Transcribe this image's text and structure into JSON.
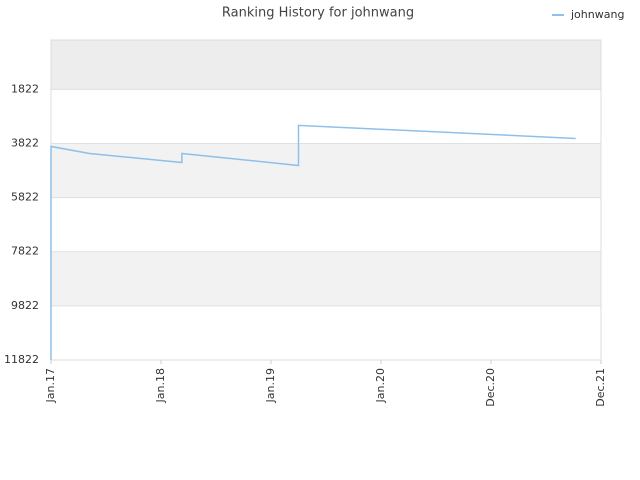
{
  "chart_data": {
    "type": "line",
    "title": "Ranking History for johnwang",
    "x": [
      2017.0,
      2017.0,
      2017.35,
      2018.19,
      2018.19,
      2019.25,
      2019.25,
      2021.77
    ],
    "series": [
      {
        "name": "johnwang",
        "color": "#8fc0ea",
        "values": [
          11822,
          3933,
          4192,
          4526,
          4192,
          4637,
          3155,
          3637
        ]
      }
    ],
    "xlim": [
      2017,
      2022
    ],
    "xticks": [
      {
        "value": 2017,
        "label": "Jan.17"
      },
      {
        "value": 2018,
        "label": "Jan.18"
      },
      {
        "value": 2019,
        "label": "Jan.19"
      },
      {
        "value": 2020,
        "label": "Jan.20"
      },
      {
        "value": 2021,
        "label": "Dec.20"
      },
      {
        "value": 2022,
        "label": "Dec.21"
      }
    ],
    "ylim": [
      0,
      11822
    ],
    "y_inverted": true,
    "yticks": [
      1822,
      3822,
      5822,
      7822,
      9822,
      11822
    ],
    "grid": true,
    "legend": "top-right"
  }
}
